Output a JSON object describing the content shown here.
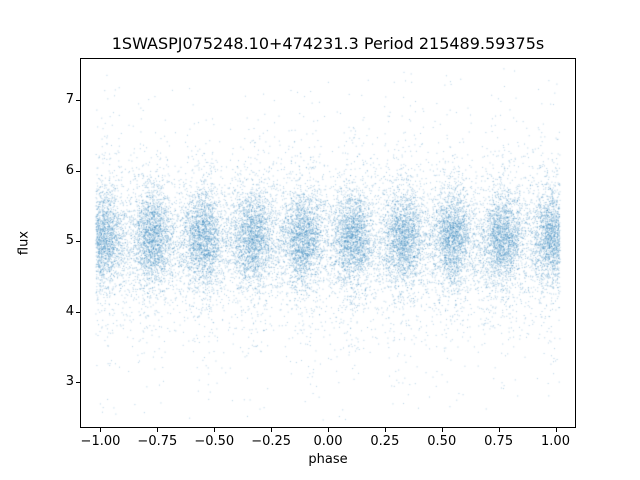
{
  "figure": {
    "background": "#ffffff"
  },
  "chart_data": {
    "type": "scatter",
    "title": "1SWASPJ075248.10+474231.3 Period 215489.59375s",
    "xlabel": "phase",
    "ylabel": "flux",
    "xlim": [
      -1.09,
      1.09
    ],
    "ylim": [
      2.35,
      7.6
    ],
    "xticks": {
      "values": [
        -1.0,
        -0.75,
        -0.5,
        -0.25,
        0.0,
        0.25,
        0.5,
        0.75,
        1.0
      ],
      "labels": [
        "−1.00",
        "−0.75",
        "−0.50",
        "−0.25",
        "0.00",
        "0.25",
        "0.50",
        "0.75",
        "1.00"
      ]
    },
    "yticks": {
      "values": [
        3,
        4,
        5,
        6,
        7
      ],
      "labels": [
        "3",
        "4",
        "5",
        "6",
        "7"
      ]
    },
    "grid": false,
    "legend": "none",
    "marker": {
      "color": "#1f77b4",
      "alpha": 0.35,
      "size": 1
    },
    "point_generation": {
      "description": "Phase-folded light curve: dense vertical clumps of points repeating every 0.22 in phase, centered on flux ~5.05, core spread ~0.35 flux, with sparse vertical tails reaching flux ~2.5 and ~7.4, plus low-density scatter between clumps.",
      "seed": 42,
      "cluster_centers": [
        -0.99,
        -0.77,
        -0.55,
        -0.33,
        -0.11,
        0.11,
        0.33,
        0.55,
        0.77,
        0.99
      ],
      "core": {
        "n": 1700,
        "x_sigma": 0.045,
        "y_mean": 5.05,
        "y_sigma": 0.33
      },
      "halo": {
        "n": 520,
        "x_sigma": 0.095,
        "y_mean": 5.0,
        "y_sigma": 0.62
      },
      "tail": {
        "n": 190,
        "x_sigma": 0.05,
        "y_mean": 5.0,
        "y_sigma": 1.15
      },
      "background": {
        "n": 1500,
        "x_range": [
          -1.01,
          1.01
        ],
        "y_mean": 5.0,
        "y_sigma": 0.45
      },
      "x_clip": [
        -1.02,
        1.02
      ],
      "y_clip": [
        2.45,
        7.45
      ]
    }
  }
}
